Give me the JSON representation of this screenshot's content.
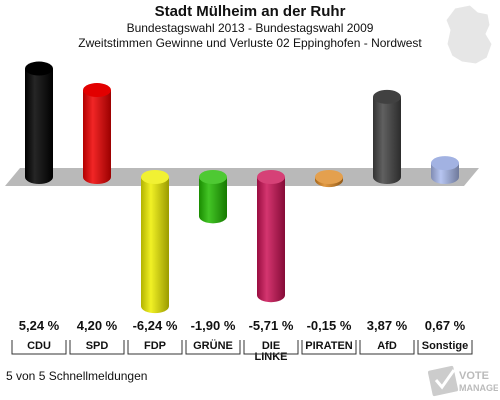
{
  "header": {
    "title": "Stadt Mülheim an der Ruhr",
    "subtitle": "Bundestagswahl 2013 - Bundestagswahl 2009",
    "description": "Zweitstimmen Gewinne und Verluste 02 Eppinghofen - Nordwest"
  },
  "footer": {
    "status": "5 von 5 Schnellmeldungen"
  },
  "watermark": {
    "text": "VOTE MANAGER"
  },
  "chart_data": {
    "type": "bar",
    "title": "Zweitstimmen Gewinne und Verluste 02 Eppinghofen - Nordwest",
    "xlabel": "",
    "ylabel": "",
    "unit": "%",
    "categories": [
      "CDU",
      "SPD",
      "FDP",
      "GRÜNE",
      "DIE LINKE",
      "PIRATEN",
      "AfD",
      "Sonstige"
    ],
    "values": [
      5.24,
      4.2,
      -6.24,
      -1.9,
      -5.71,
      -0.15,
      3.87,
      0.67
    ],
    "value_labels": [
      "5,24 %",
      "4,20 %",
      "-6,24 %",
      "-1,90 %",
      "-5,71 %",
      "-0,15 %",
      "3,87 %",
      "0,67 %"
    ],
    "category_labels": [
      "CDU",
      "SPD",
      "FDP",
      "GRÜNE",
      "DIE\nLINKE",
      "PIRATEN",
      "AfD",
      "Sonstige"
    ],
    "colors": [
      "#000000",
      "#ee0000",
      "#eeee00",
      "#22bb00",
      "#cc1155",
      "#dd8822",
      "#444444",
      "#aabbee"
    ],
    "ylim": [
      -6.5,
      5.5
    ],
    "grid": false,
    "legend": "none"
  }
}
